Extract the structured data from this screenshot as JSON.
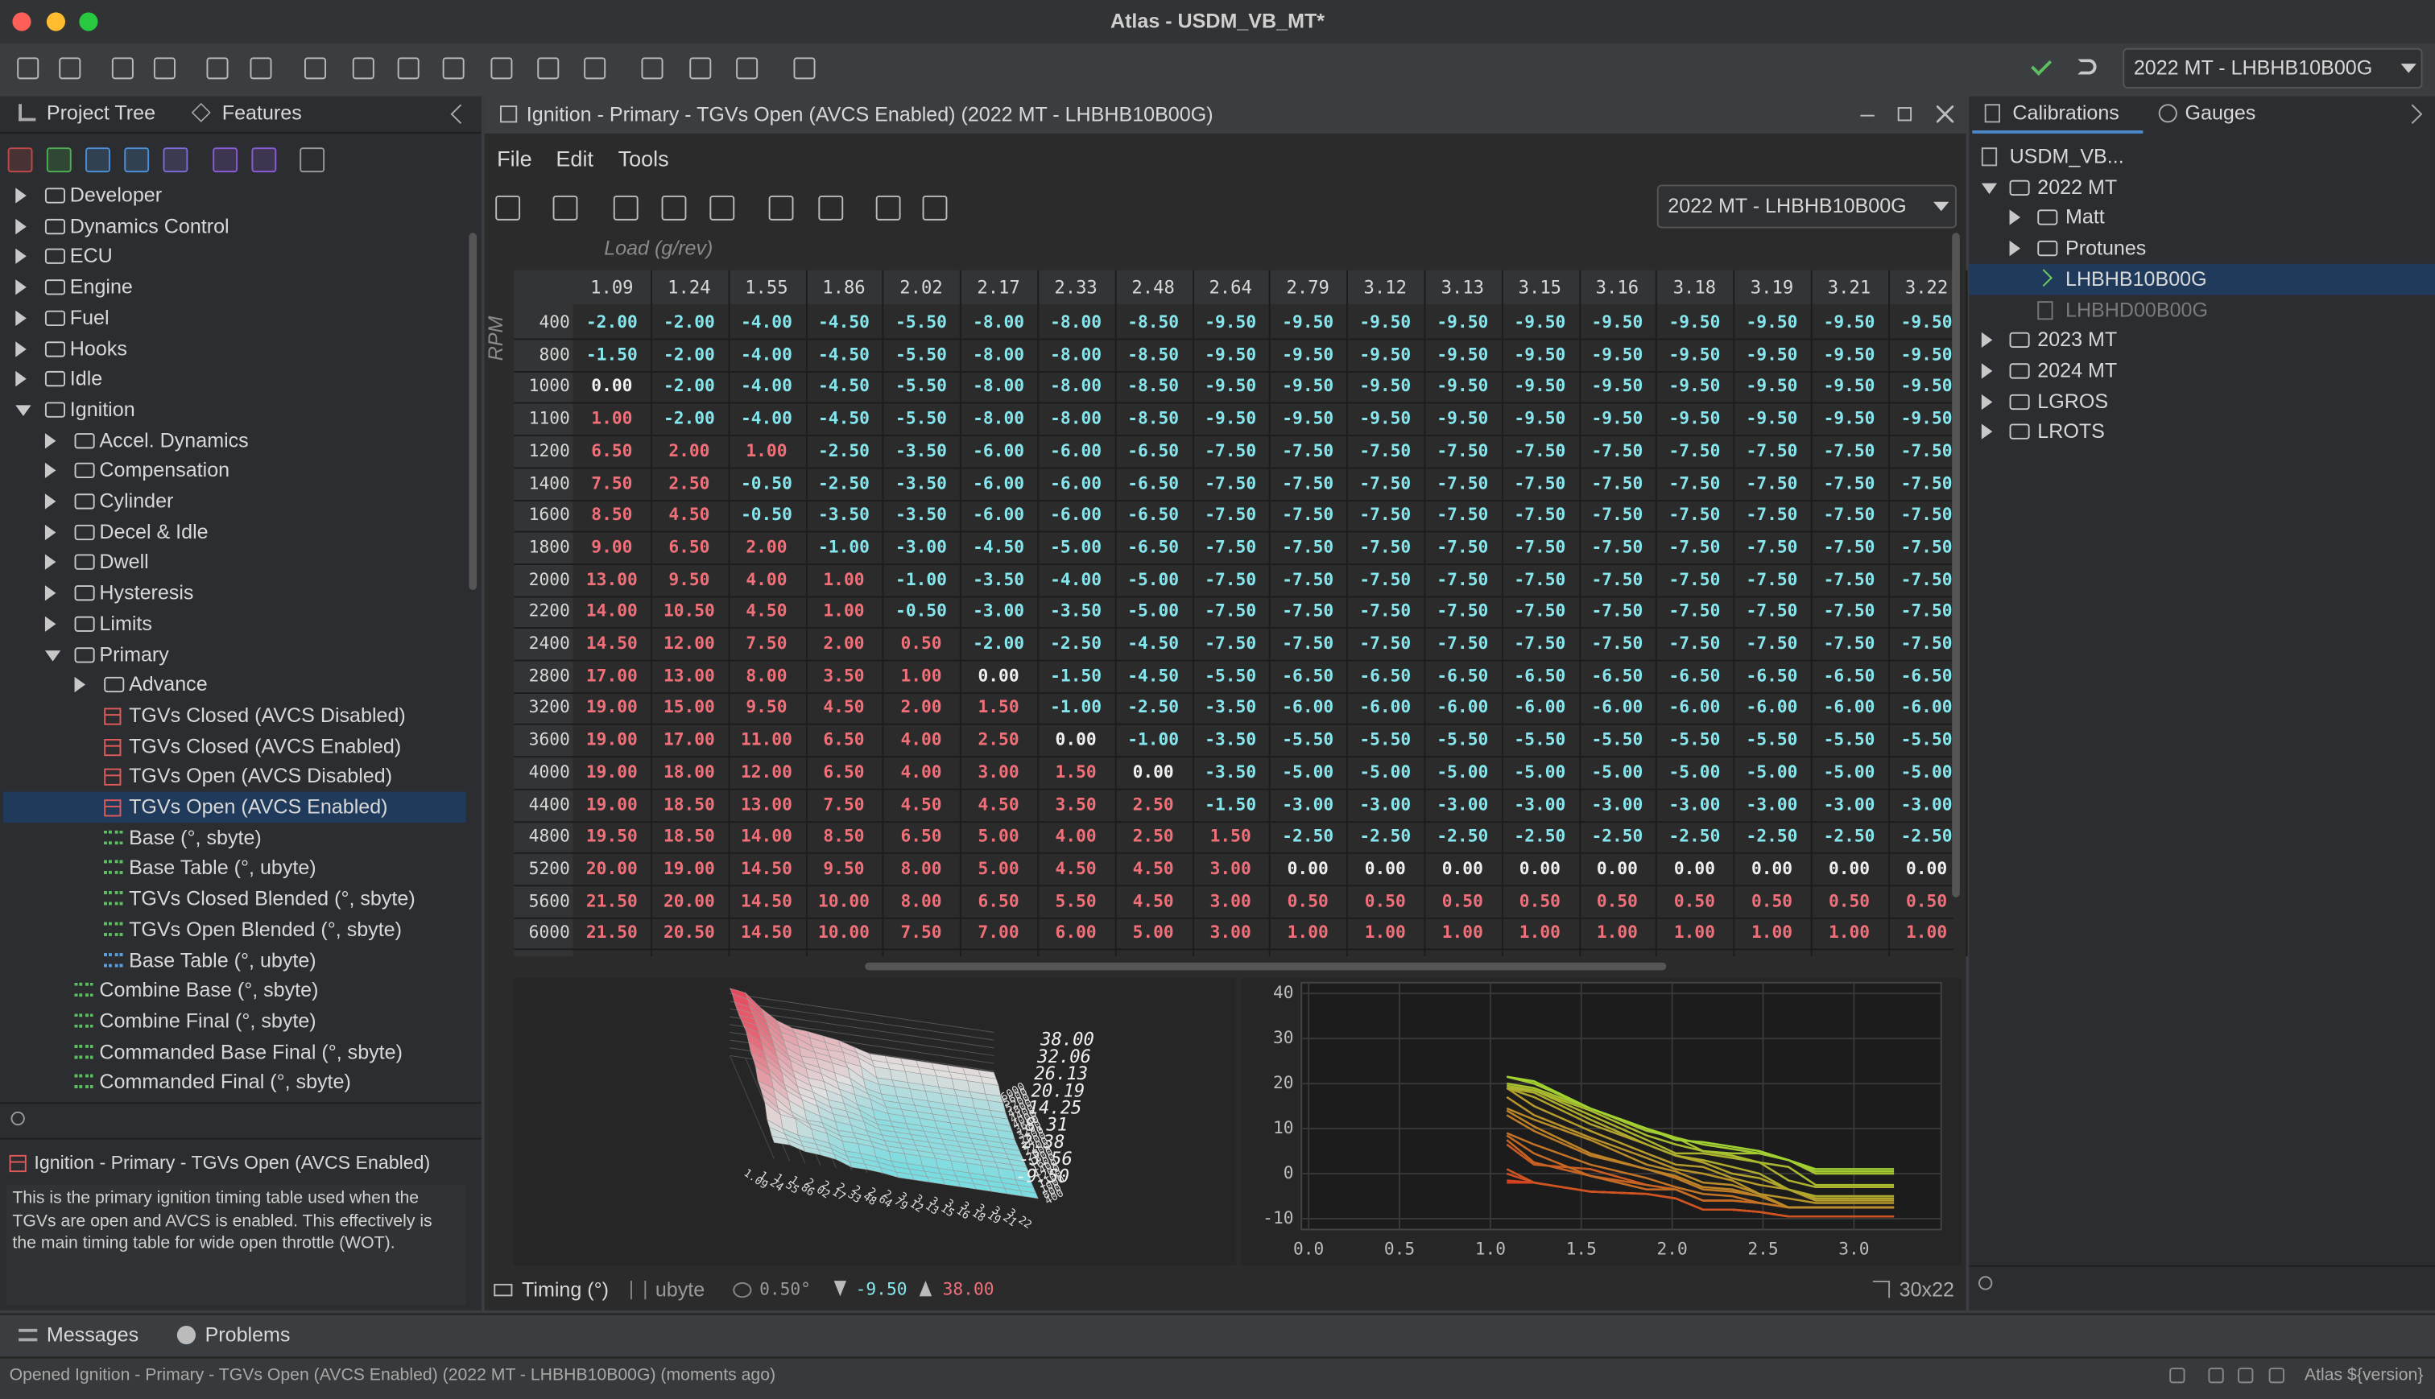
{
  "window": {
    "title": "Atlas - USDM_VB_MT*"
  },
  "toolbar": {
    "calibration_select": "2022 MT - LHBHB10B00G"
  },
  "left_panel": {
    "tabs": [
      "Project Tree",
      "Features"
    ],
    "tree": [
      {
        "label": "Developer",
        "depth": 0,
        "node": "closed",
        "icon": "folder"
      },
      {
        "label": "Dynamics Control",
        "depth": 0,
        "node": "closed",
        "icon": "folder"
      },
      {
        "label": "ECU",
        "depth": 0,
        "node": "closed",
        "icon": "folder"
      },
      {
        "label": "Engine",
        "depth": 0,
        "node": "closed",
        "icon": "folder"
      },
      {
        "label": "Fuel",
        "depth": 0,
        "node": "closed",
        "icon": "folder"
      },
      {
        "label": "Hooks",
        "depth": 0,
        "node": "closed",
        "icon": "folder"
      },
      {
        "label": "Idle",
        "depth": 0,
        "node": "closed",
        "icon": "folder"
      },
      {
        "label": "Ignition",
        "depth": 0,
        "node": "open",
        "icon": "folder"
      },
      {
        "label": "Accel. Dynamics",
        "depth": 1,
        "node": "closed",
        "icon": "folder"
      },
      {
        "label": "Compensation",
        "depth": 1,
        "node": "closed",
        "icon": "folder"
      },
      {
        "label": "Cylinder",
        "depth": 1,
        "node": "closed",
        "icon": "folder"
      },
      {
        "label": "Decel & Idle",
        "depth": 1,
        "node": "closed",
        "icon": "folder"
      },
      {
        "label": "Dwell",
        "depth": 1,
        "node": "closed",
        "icon": "folder"
      },
      {
        "label": "Hysteresis",
        "depth": 1,
        "node": "closed",
        "icon": "folder"
      },
      {
        "label": "Limits",
        "depth": 1,
        "node": "closed",
        "icon": "folder"
      },
      {
        "label": "Primary",
        "depth": 1,
        "node": "open",
        "icon": "folder"
      },
      {
        "label": "Advance",
        "depth": 2,
        "node": "closed",
        "icon": "folder"
      },
      {
        "label": "TGVs Closed (AVCS Disabled)",
        "depth": 2,
        "node": "leaf",
        "icon": "table"
      },
      {
        "label": "TGVs Closed (AVCS Enabled)",
        "depth": 2,
        "node": "leaf",
        "icon": "table"
      },
      {
        "label": "TGVs Open (AVCS Disabled)",
        "depth": 2,
        "node": "leaf",
        "icon": "table"
      },
      {
        "label": "TGVs Open (AVCS Enabled)",
        "depth": 2,
        "node": "leaf",
        "icon": "table",
        "selected": true
      },
      {
        "label": "Base (°, sbyte)",
        "depth": 2,
        "node": "leaf",
        "icon": "data"
      },
      {
        "label": "Base Table (°, ubyte)",
        "depth": 2,
        "node": "leaf",
        "icon": "data"
      },
      {
        "label": "TGVs Closed Blended (°, sbyte)",
        "depth": 2,
        "node": "leaf",
        "icon": "data"
      },
      {
        "label": "TGVs Open Blended (°, sbyte)",
        "depth": 2,
        "node": "leaf",
        "icon": "data"
      },
      {
        "label": "Base Table (°, ubyte)",
        "depth": 2,
        "node": "leaf",
        "icon": "blue"
      },
      {
        "label": "Combine Base (°, sbyte)",
        "depth": 1,
        "node": "leaf",
        "icon": "data"
      },
      {
        "label": "Combine Final (°, sbyte)",
        "depth": 1,
        "node": "leaf",
        "icon": "data"
      },
      {
        "label": "Commanded Base Final (°, sbyte)",
        "depth": 1,
        "node": "leaf",
        "icon": "data"
      },
      {
        "label": "Commanded Final (°, sbyte)",
        "depth": 1,
        "node": "leaf",
        "icon": "data"
      }
    ],
    "selected_title": "Ignition - Primary - TGVs Open (AVCS Enabled)",
    "description": "This is the primary ignition timing table used when the TGVs are open and AVCS is enabled. This effectively is the main timing table for wide open throttle (WOT)."
  },
  "editor": {
    "title": "Ignition - Primary - TGVs Open (AVCS Enabled) (2022 MT - LHBHB10B00G)",
    "menu": [
      "File",
      "Edit",
      "Tools"
    ],
    "calibration_select": "2022 MT - LHBHB10B00G",
    "x_axis_label": "Load (g/rev)",
    "y_axis_label": "RPM",
    "columns": [
      "1.09",
      "1.24",
      "1.55",
      "1.86",
      "2.02",
      "2.17",
      "2.33",
      "2.48",
      "2.64",
      "2.79",
      "3.12",
      "3.13",
      "3.15",
      "3.16",
      "3.18",
      "3.19",
      "3.21",
      "3.22"
    ],
    "rows": [
      {
        "rpm": "400",
        "values": [
          "-2.00",
          "-2.00",
          "-4.00",
          "-4.50",
          "-5.50",
          "-8.00",
          "-8.00",
          "-8.50",
          "-9.50",
          "-9.50",
          "-9.50",
          "-9.50",
          "-9.50",
          "-9.50",
          "-9.50",
          "-9.50",
          "-9.50",
          "-9.50"
        ]
      },
      {
        "rpm": "800",
        "values": [
          "-1.50",
          "-2.00",
          "-4.00",
          "-4.50",
          "-5.50",
          "-8.00",
          "-8.00",
          "-8.50",
          "-9.50",
          "-9.50",
          "-9.50",
          "-9.50",
          "-9.50",
          "-9.50",
          "-9.50",
          "-9.50",
          "-9.50",
          "-9.50"
        ]
      },
      {
        "rpm": "1000",
        "values": [
          "0.00",
          "-2.00",
          "-4.00",
          "-4.50",
          "-5.50",
          "-8.00",
          "-8.00",
          "-8.50",
          "-9.50",
          "-9.50",
          "-9.50",
          "-9.50",
          "-9.50",
          "-9.50",
          "-9.50",
          "-9.50",
          "-9.50",
          "-9.50"
        ]
      },
      {
        "rpm": "1100",
        "values": [
          "1.00",
          "-2.00",
          "-4.00",
          "-4.50",
          "-5.50",
          "-8.00",
          "-8.00",
          "-8.50",
          "-9.50",
          "-9.50",
          "-9.50",
          "-9.50",
          "-9.50",
          "-9.50",
          "-9.50",
          "-9.50",
          "-9.50",
          "-9.50"
        ]
      },
      {
        "rpm": "1200",
        "values": [
          "6.50",
          "2.00",
          "1.00",
          "-2.50",
          "-3.50",
          "-6.00",
          "-6.00",
          "-6.50",
          "-7.50",
          "-7.50",
          "-7.50",
          "-7.50",
          "-7.50",
          "-7.50",
          "-7.50",
          "-7.50",
          "-7.50",
          "-7.50"
        ]
      },
      {
        "rpm": "1400",
        "values": [
          "7.50",
          "2.50",
          "-0.50",
          "-2.50",
          "-3.50",
          "-6.00",
          "-6.00",
          "-6.50",
          "-7.50",
          "-7.50",
          "-7.50",
          "-7.50",
          "-7.50",
          "-7.50",
          "-7.50",
          "-7.50",
          "-7.50",
          "-7.50"
        ]
      },
      {
        "rpm": "1600",
        "values": [
          "8.50",
          "4.50",
          "-0.50",
          "-3.50",
          "-3.50",
          "-6.00",
          "-6.00",
          "-6.50",
          "-7.50",
          "-7.50",
          "-7.50",
          "-7.50",
          "-7.50",
          "-7.50",
          "-7.50",
          "-7.50",
          "-7.50",
          "-7.50"
        ]
      },
      {
        "rpm": "1800",
        "values": [
          "9.00",
          "6.50",
          "2.00",
          "-1.00",
          "-3.00",
          "-4.50",
          "-5.00",
          "-6.50",
          "-7.50",
          "-7.50",
          "-7.50",
          "-7.50",
          "-7.50",
          "-7.50",
          "-7.50",
          "-7.50",
          "-7.50",
          "-7.50"
        ]
      },
      {
        "rpm": "2000",
        "values": [
          "13.00",
          "9.50",
          "4.00",
          "1.00",
          "-1.00",
          "-3.50",
          "-4.00",
          "-5.00",
          "-7.50",
          "-7.50",
          "-7.50",
          "-7.50",
          "-7.50",
          "-7.50",
          "-7.50",
          "-7.50",
          "-7.50",
          "-7.50"
        ]
      },
      {
        "rpm": "2200",
        "values": [
          "14.00",
          "10.50",
          "4.50",
          "1.00",
          "-0.50",
          "-3.00",
          "-3.50",
          "-5.00",
          "-7.50",
          "-7.50",
          "-7.50",
          "-7.50",
          "-7.50",
          "-7.50",
          "-7.50",
          "-7.50",
          "-7.50",
          "-7.50"
        ]
      },
      {
        "rpm": "2400",
        "values": [
          "14.50",
          "12.00",
          "7.50",
          "2.00",
          "0.50",
          "-2.00",
          "-2.50",
          "-4.50",
          "-7.50",
          "-7.50",
          "-7.50",
          "-7.50",
          "-7.50",
          "-7.50",
          "-7.50",
          "-7.50",
          "-7.50",
          "-7.50"
        ]
      },
      {
        "rpm": "2800",
        "values": [
          "17.00",
          "13.00",
          "8.00",
          "3.50",
          "1.00",
          "0.00",
          "-1.50",
          "-4.50",
          "-5.50",
          "-6.50",
          "-6.50",
          "-6.50",
          "-6.50",
          "-6.50",
          "-6.50",
          "-6.50",
          "-6.50",
          "-6.50"
        ]
      },
      {
        "rpm": "3200",
        "values": [
          "19.00",
          "15.00",
          "9.50",
          "4.50",
          "2.00",
          "1.50",
          "-1.00",
          "-2.50",
          "-3.50",
          "-6.00",
          "-6.00",
          "-6.00",
          "-6.00",
          "-6.00",
          "-6.00",
          "-6.00",
          "-6.00",
          "-6.00"
        ]
      },
      {
        "rpm": "3600",
        "values": [
          "19.00",
          "17.00",
          "11.00",
          "6.50",
          "4.00",
          "2.50",
          "0.00",
          "-1.00",
          "-3.50",
          "-5.50",
          "-5.50",
          "-5.50",
          "-5.50",
          "-5.50",
          "-5.50",
          "-5.50",
          "-5.50",
          "-5.50"
        ]
      },
      {
        "rpm": "4000",
        "values": [
          "19.00",
          "18.00",
          "12.00",
          "6.50",
          "4.00",
          "3.00",
          "1.50",
          "0.00",
          "-3.50",
          "-5.00",
          "-5.00",
          "-5.00",
          "-5.00",
          "-5.00",
          "-5.00",
          "-5.00",
          "-5.00",
          "-5.00"
        ]
      },
      {
        "rpm": "4400",
        "values": [
          "19.00",
          "18.50",
          "13.00",
          "7.50",
          "4.50",
          "4.50",
          "3.50",
          "2.50",
          "-1.50",
          "-3.00",
          "-3.00",
          "-3.00",
          "-3.00",
          "-3.00",
          "-3.00",
          "-3.00",
          "-3.00",
          "-3.00"
        ]
      },
      {
        "rpm": "4800",
        "values": [
          "19.50",
          "18.50",
          "14.00",
          "8.50",
          "6.50",
          "5.00",
          "4.00",
          "2.50",
          "1.50",
          "-2.50",
          "-2.50",
          "-2.50",
          "-2.50",
          "-2.50",
          "-2.50",
          "-2.50",
          "-2.50",
          "-2.50"
        ]
      },
      {
        "rpm": "5200",
        "values": [
          "20.00",
          "19.00",
          "14.50",
          "9.50",
          "8.00",
          "5.00",
          "4.50",
          "4.50",
          "3.00",
          "0.00",
          "0.00",
          "0.00",
          "0.00",
          "0.00",
          "0.00",
          "0.00",
          "0.00",
          "0.00"
        ]
      },
      {
        "rpm": "5600",
        "values": [
          "21.50",
          "20.00",
          "14.50",
          "10.00",
          "8.00",
          "6.50",
          "5.50",
          "4.50",
          "3.00",
          "0.50",
          "0.50",
          "0.50",
          "0.50",
          "0.50",
          "0.50",
          "0.50",
          "0.50",
          "0.50"
        ]
      },
      {
        "rpm": "6000",
        "values": [
          "21.50",
          "20.50",
          "14.50",
          "10.00",
          "7.50",
          "7.00",
          "6.00",
          "5.00",
          "3.00",
          "1.00",
          "1.00",
          "1.00",
          "1.00",
          "1.00",
          "1.00",
          "1.00",
          "1.00",
          "1.00"
        ]
      }
    ],
    "plot3d": {
      "labels": [
        "38.00",
        "32.06",
        "26.13",
        "20.19",
        "14.25",
        "8.31",
        "2.38",
        "-3.56",
        "-9.50"
      ]
    },
    "plot2d": {
      "xlim": [
        -0.04,
        3.48
      ],
      "ylim": [
        -12.4,
        42.4
      ],
      "xticks": [
        {
          "value": 0,
          "label": "0.0"
        },
        0.5,
        {
          "value": 1,
          "label": "1.0"
        },
        1.5,
        {
          "value": 2,
          "label": "2.0"
        },
        2.5,
        {
          "value": 3,
          "label": "3.0"
        }
      ],
      "yticks": [
        40,
        30,
        20,
        10,
        0,
        -10
      ],
      "grid": true
    },
    "status": {
      "unit": "Timing (°)",
      "type": "ubyte",
      "resolution": "0.50°",
      "min": "-9.50",
      "max": "38.00",
      "size": "30x22"
    }
  },
  "right_panel": {
    "tabs": [
      "Calibrations",
      "Gauges"
    ],
    "tree": [
      {
        "label": "USDM_VB...",
        "depth": 0,
        "node": "leaf",
        "icon": "file"
      },
      {
        "label": "2022 MT",
        "depth": 0,
        "node": "open",
        "icon": "folder"
      },
      {
        "label": "Matt",
        "depth": 1,
        "node": "closed",
        "icon": "folder"
      },
      {
        "label": "Protunes",
        "depth": 1,
        "node": "closed",
        "icon": "folder"
      },
      {
        "label": "LHBHB10B00G",
        "depth": 1,
        "node": "leaf",
        "icon": "current",
        "selected": true
      },
      {
        "label": "LHBHD00B00G",
        "depth": 1,
        "node": "leaf",
        "icon": "dimfile",
        "dim": true
      },
      {
        "label": "2023 MT",
        "depth": 0,
        "node": "closed",
        "icon": "folder"
      },
      {
        "label": "2024 MT",
        "depth": 0,
        "node": "closed",
        "icon": "folder"
      },
      {
        "label": "LGROS",
        "depth": 0,
        "node": "closed",
        "icon": "folder"
      },
      {
        "label": "LROTS",
        "depth": 0,
        "node": "closed",
        "icon": "folder"
      }
    ]
  },
  "bottom_tabs": [
    "Messages",
    "Problems"
  ],
  "status_bar": {
    "message": "Opened Ignition - Primary - TGVs Open (AVCS Enabled) (2022 MT - LHBHB10B00G) (moments ago)",
    "version": "Atlas ${version}"
  }
}
